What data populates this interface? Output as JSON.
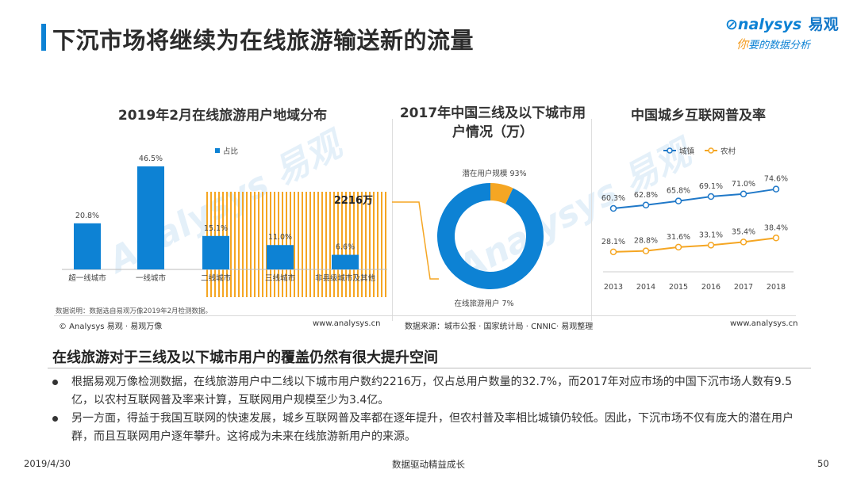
{
  "page": {
    "title": "下沉市场将继续为在线旅游输送新的流量",
    "logo": {
      "name": "nalysys",
      "name_prefix": "⊘",
      "cn": "易观",
      "slogan_first": "你",
      "slogan_rest": "要的数据分析"
    }
  },
  "colors": {
    "accent": "#0d82d4",
    "bar": "#0d82d4",
    "highlight": "#f5a623",
    "rural": "#f5a623",
    "urban": "#1f78c8"
  },
  "chart_data": [
    {
      "type": "bar",
      "title": "2019年2月在线旅游用户地域分布",
      "categories": [
        "超一线城市",
        "一线城市",
        "二线城市",
        "三线城市",
        "非县级城市及其他"
      ],
      "values": [
        20.8,
        46.5,
        15.1,
        11.0,
        6.6
      ],
      "value_labels": [
        "20.8%",
        "46.5%",
        "15.1%",
        "11.0%",
        "6.6%"
      ],
      "legend": [
        "占比"
      ],
      "ylim": [
        0,
        50
      ],
      "annotation": "2216万",
      "note": "数据说明：数据选自易观万像2019年2月检测数据。",
      "source_left": "© Analysys 易观 · 易观万像",
      "source_right": "www.analysys.cn"
    },
    {
      "type": "pie",
      "title": "2017年中国三线及以下城市用户情况（万）",
      "labels": [
        "潜在用户规模",
        "在线旅游用户"
      ],
      "values": [
        93,
        7
      ],
      "slice_labels": [
        "潜在用户规模 93%",
        "在线旅游用户 7%"
      ]
    },
    {
      "type": "line",
      "title": "中国城乡互联网普及率",
      "x": [
        "2013",
        "2014",
        "2015",
        "2016",
        "2017",
        "2018"
      ],
      "series": [
        {
          "name": "城镇",
          "values": [
            60.3,
            62.8,
            65.8,
            69.1,
            71.0,
            74.6
          ],
          "labels": [
            "60.3%",
            "62.8%",
            "65.8%",
            "69.1%",
            "71.0%",
            "74.6%"
          ]
        },
        {
          "name": "农村",
          "values": [
            28.1,
            28.8,
            31.6,
            33.1,
            35.4,
            38.4
          ],
          "labels": [
            "28.1%",
            "28.8%",
            "31.6%",
            "33.1%",
            "35.4%",
            "38.4%"
          ]
        }
      ],
      "ylim": [
        0,
        100
      ],
      "source_left": "数据来源：城市公报 · 国家统计局 · CNNIC· 易观整理",
      "source_right": "www.analysys.cn"
    }
  ],
  "section": {
    "title": "在线旅游对于三线及以下城市用户的覆盖仍然有很大提升空间",
    "bullets": [
      "根据易观万像检测数据，在线旅游用户中二线以下城市用户数约2216万，仅占总用户数量的32.7%，而2017年对应市场的中国下沉市场人数有9.5亿，以农村互联网普及率来计算，互联网用户规模至少为3.4亿。",
      "另一方面，得益于我国互联网的快速发展，城乡互联网普及率都在逐年提升，但农村普及率相比城镇仍较低。因此，下沉市场不仅有庞大的潜在用户群，而且互联网用户逐年攀升。这将成为未来在线旅游新用户的来源。"
    ]
  },
  "footer": {
    "date": "2019/4/30",
    "center": "数据驱动精益成长",
    "page": "50"
  }
}
